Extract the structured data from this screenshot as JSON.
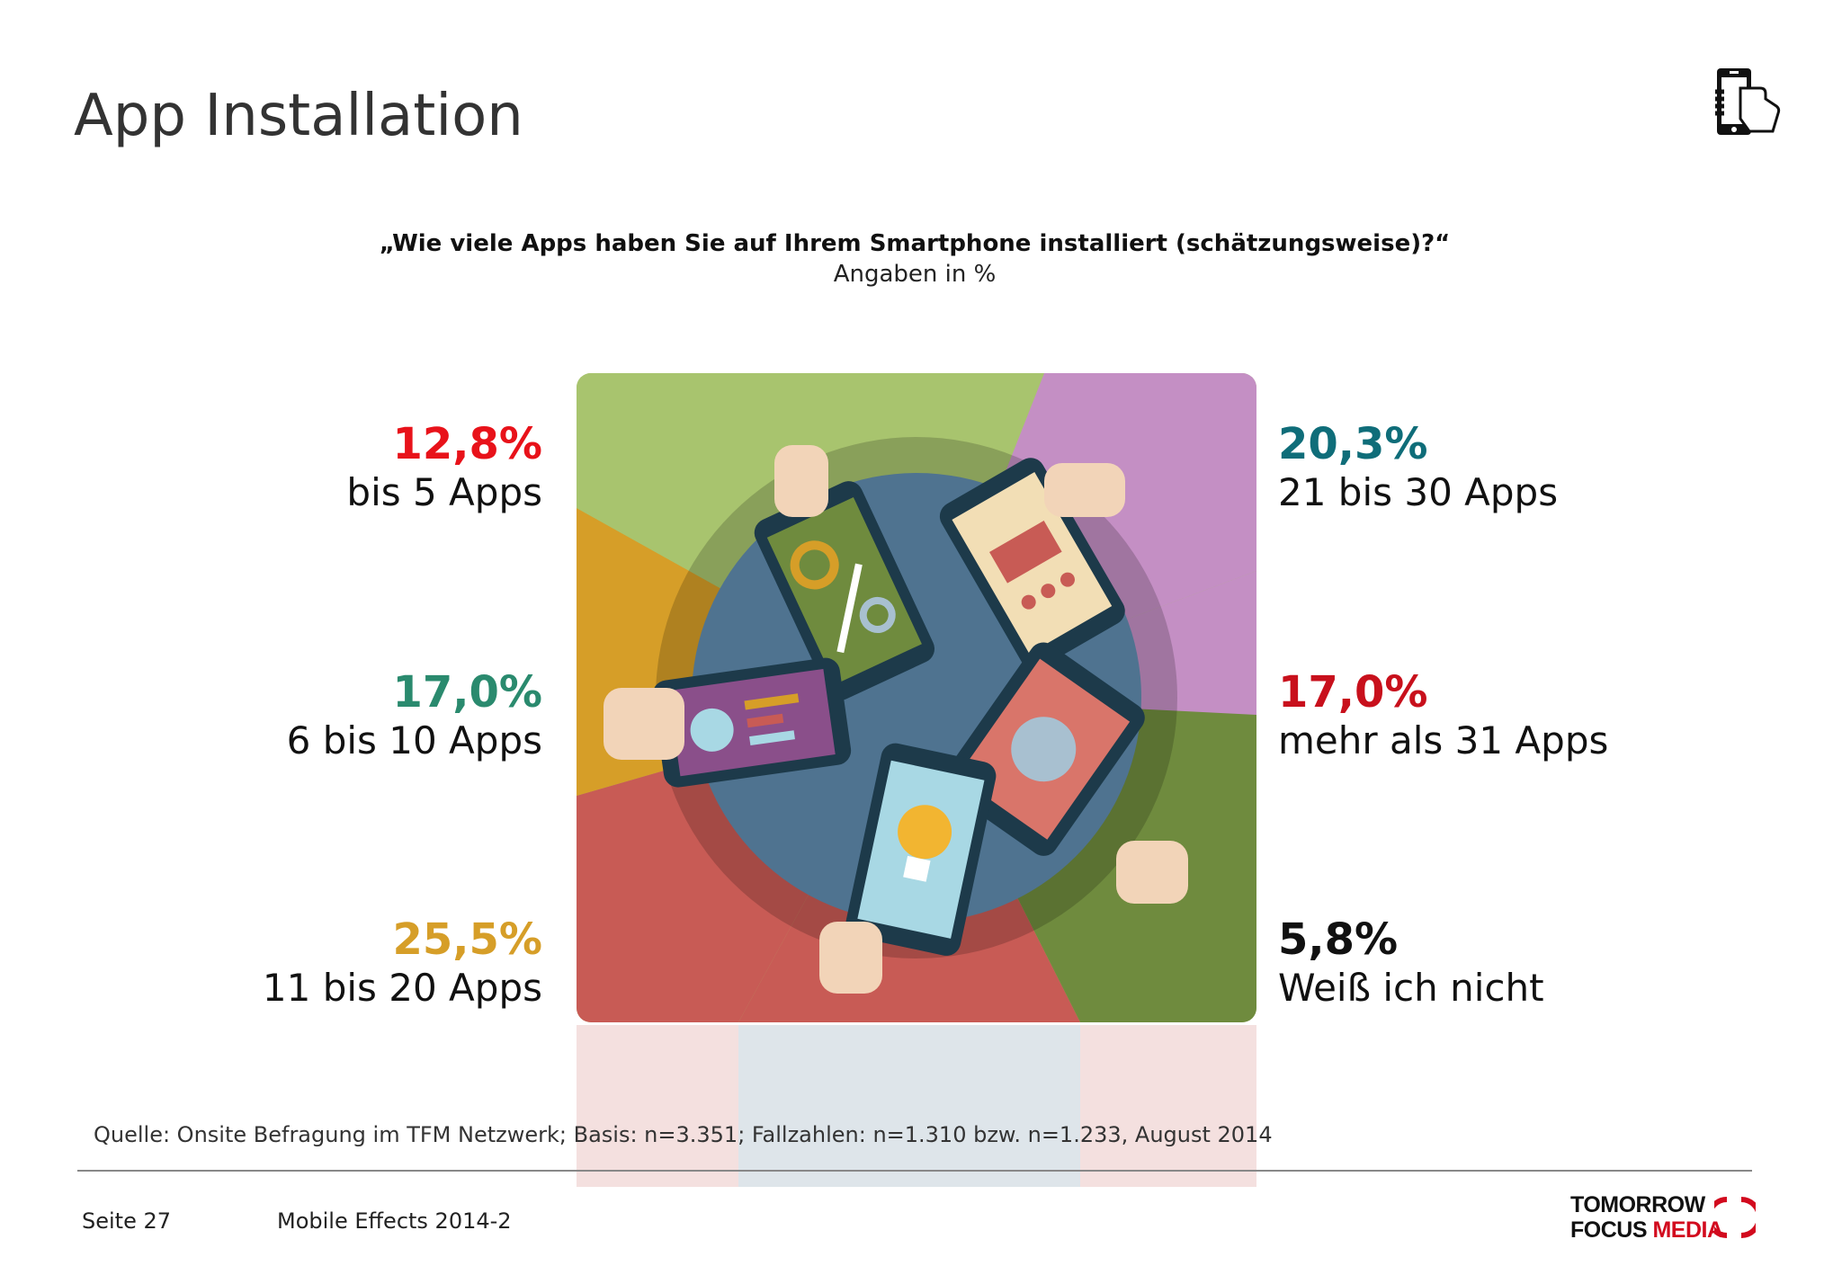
{
  "slide": {
    "title": "App Installation",
    "question": "„Wie viele Apps haben Sie auf Ihrem Smartphone installiert (schätzungsweise)?“",
    "subtitle": "Angaben in %",
    "source": "Quelle: Onsite Befragung im TFM Netzwerk; Basis: n=3.351; Fallzahlen: n=1.310 bzw. n=1.233, August 2014",
    "page": "Seite 27",
    "report": "Mobile Effects 2014-2",
    "logo_line1": "TOMORROW",
    "logo_line2a": "FOCUS",
    "logo_line2b": "MEDIA",
    "icon": "smartphone-hand-icon"
  },
  "chart_data": {
    "type": "table",
    "categories": [
      "bis 5 Apps",
      "6 bis 10 Apps",
      "11 bis 20 Apps",
      "21 bis 30 Apps",
      "mehr als 31 Apps",
      "Weiß ich nicht"
    ],
    "values": [
      12.8,
      17.0,
      25.5,
      20.3,
      17.0,
      5.8
    ],
    "labels": [
      "12,8%",
      "17,0%",
      "25,5%",
      "20,3%",
      "17,0%",
      "5,8%"
    ],
    "colors": [
      "#e8121a",
      "#2a8a6e",
      "#d69e28",
      "#0f6d79",
      "#c8101c",
      "#111111"
    ],
    "unit": "%"
  }
}
